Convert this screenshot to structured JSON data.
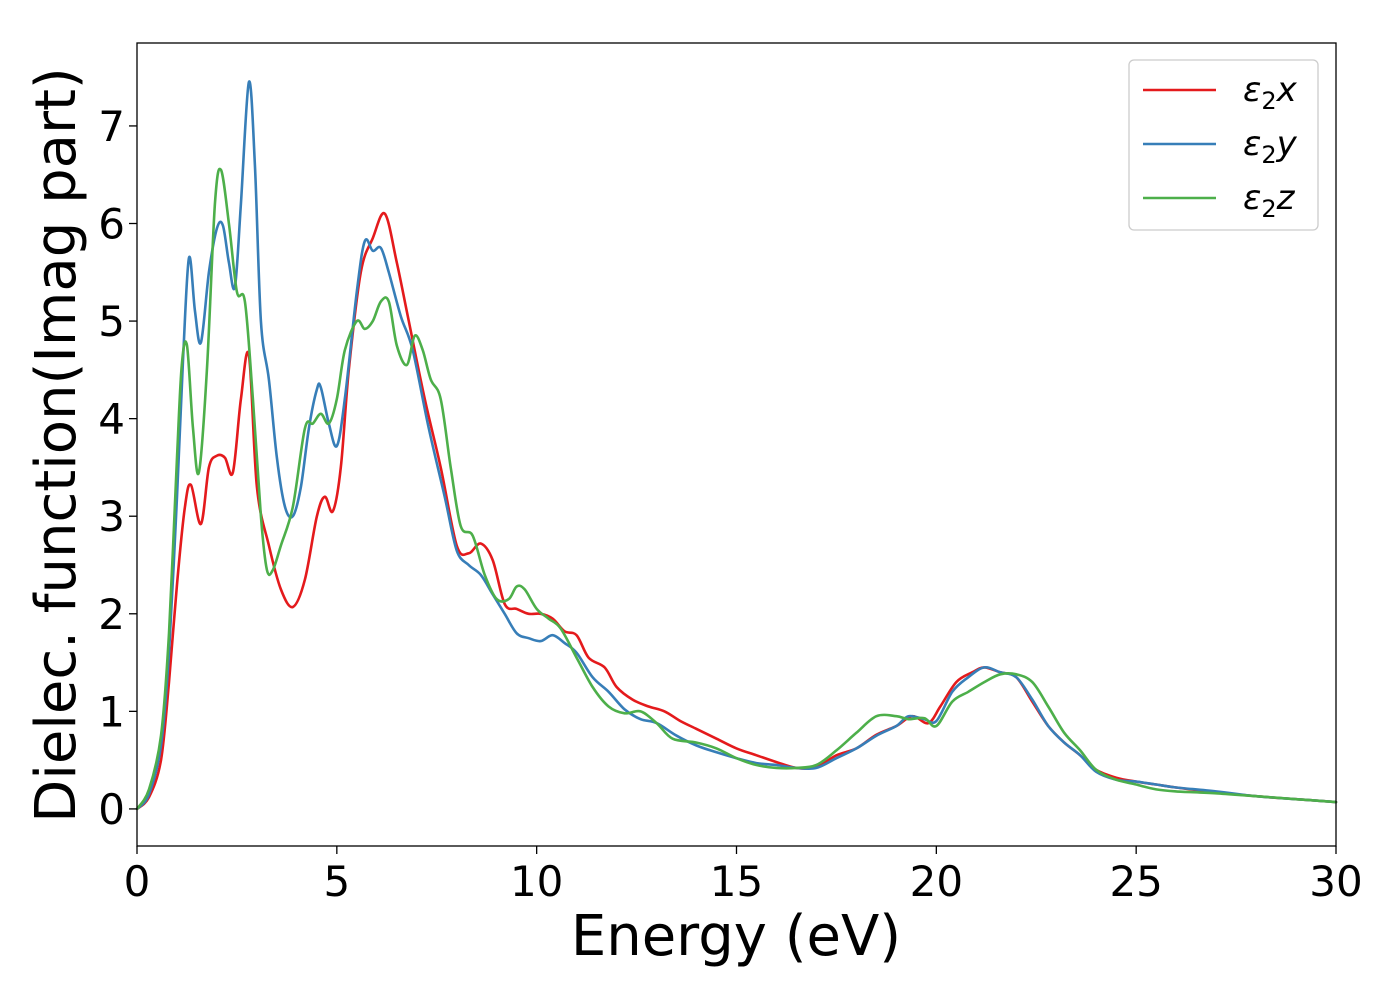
{
  "chart_data": {
    "type": "line",
    "xlabel": "Energy (eV)",
    "ylabel": "Dielec. function(Imag part)",
    "xlim": [
      0,
      30
    ],
    "ylim": [
      -0.38,
      7.85
    ],
    "xticks": [
      0,
      5,
      10,
      15,
      20,
      25,
      30
    ],
    "yticks": [
      0,
      1,
      2,
      3,
      4,
      5,
      6,
      7
    ],
    "grid": false,
    "legend_position": "top-right",
    "series": [
      {
        "name": "ε2x",
        "legend_main": "ε",
        "legend_sub": "2",
        "legend_var": "x",
        "color": "#e41a1c",
        "x": [
          0,
          0.3,
          0.6,
          0.8,
          1.0,
          1.2,
          1.35,
          1.6,
          1.8,
          2.0,
          2.2,
          2.4,
          2.6,
          2.8,
          3.0,
          3.3,
          3.6,
          3.9,
          4.2,
          4.5,
          4.7,
          4.9,
          5.1,
          5.3,
          5.6,
          5.9,
          6.2,
          6.5,
          6.8,
          7.2,
          7.6,
          8.0,
          8.3,
          8.6,
          8.9,
          9.2,
          9.5,
          9.8,
          10.1,
          10.4,
          10.7,
          11.0,
          11.3,
          11.7,
          12.0,
          12.4,
          12.8,
          13.2,
          13.6,
          14.0,
          14.5,
          15.0,
          15.5,
          16.0,
          16.5,
          17.0,
          17.5,
          18.0,
          18.5,
          19.0,
          19.4,
          19.8,
          20.1,
          20.5,
          20.9,
          21.2,
          21.6,
          22.0,
          22.4,
          22.8,
          23.2,
          23.6,
          24.0,
          24.5,
          25.0,
          25.5,
          26.0,
          27.0,
          28.0,
          29.0,
          30.0
        ],
        "y": [
          0.0,
          0.12,
          0.5,
          1.3,
          2.3,
          3.1,
          3.32,
          2.92,
          3.5,
          3.62,
          3.6,
          3.45,
          4.2,
          4.65,
          3.3,
          2.7,
          2.25,
          2.07,
          2.35,
          3.0,
          3.2,
          3.05,
          3.5,
          4.5,
          5.5,
          5.85,
          6.1,
          5.6,
          5.0,
          4.2,
          3.5,
          2.7,
          2.62,
          2.72,
          2.55,
          2.1,
          2.05,
          2.0,
          2.0,
          1.95,
          1.82,
          1.78,
          1.55,
          1.45,
          1.25,
          1.12,
          1.05,
          1.0,
          0.9,
          0.82,
          0.72,
          0.62,
          0.55,
          0.48,
          0.42,
          0.43,
          0.55,
          0.62,
          0.76,
          0.85,
          0.95,
          0.88,
          1.05,
          1.3,
          1.4,
          1.45,
          1.4,
          1.35,
          1.1,
          0.85,
          0.68,
          0.55,
          0.4,
          0.32,
          0.28,
          0.25,
          0.22,
          0.17,
          0.13,
          0.1,
          0.07
        ]
      },
      {
        "name": "ε2y",
        "legend_main": "ε",
        "legend_sub": "2",
        "legend_var": "y",
        "color": "#377eb8",
        "x": [
          0,
          0.3,
          0.6,
          0.8,
          1.0,
          1.15,
          1.3,
          1.45,
          1.6,
          1.8,
          2.0,
          2.15,
          2.3,
          2.45,
          2.6,
          2.8,
          2.95,
          3.1,
          3.3,
          3.5,
          3.7,
          3.9,
          4.1,
          4.3,
          4.5,
          4.6,
          4.8,
          5.0,
          5.2,
          5.5,
          5.7,
          5.9,
          6.1,
          6.3,
          6.6,
          6.9,
          7.3,
          7.7,
          8.0,
          8.3,
          8.6,
          8.9,
          9.2,
          9.5,
          9.8,
          10.1,
          10.4,
          10.7,
          11.0,
          11.4,
          11.8,
          12.2,
          12.6,
          13.0,
          13.5,
          14.0,
          14.5,
          15.0,
          15.5,
          16.0,
          16.5,
          17.0,
          17.5,
          18.0,
          18.5,
          19.0,
          19.3,
          19.7,
          20.0,
          20.4,
          20.8,
          21.2,
          21.6,
          22.0,
          22.4,
          22.8,
          23.2,
          23.6,
          24.0,
          24.5,
          25.0,
          25.5,
          26.0,
          27.0,
          28.0,
          29.0,
          30.0
        ],
        "y": [
          0.0,
          0.15,
          0.65,
          1.6,
          3.2,
          4.6,
          5.65,
          5.1,
          4.78,
          5.5,
          5.95,
          5.98,
          5.6,
          5.35,
          6.2,
          7.45,
          6.6,
          5.0,
          4.4,
          3.6,
          3.1,
          3.0,
          3.3,
          3.9,
          4.3,
          4.32,
          3.95,
          3.72,
          4.2,
          5.3,
          5.82,
          5.72,
          5.75,
          5.5,
          5.05,
          4.7,
          3.9,
          3.2,
          2.65,
          2.5,
          2.4,
          2.2,
          2.0,
          1.8,
          1.75,
          1.72,
          1.78,
          1.7,
          1.6,
          1.35,
          1.2,
          1.02,
          0.92,
          0.88,
          0.75,
          0.65,
          0.58,
          0.52,
          0.47,
          0.45,
          0.42,
          0.42,
          0.52,
          0.62,
          0.75,
          0.85,
          0.95,
          0.92,
          0.9,
          1.2,
          1.35,
          1.45,
          1.4,
          1.35,
          1.12,
          0.85,
          0.68,
          0.55,
          0.38,
          0.3,
          0.28,
          0.25,
          0.22,
          0.18,
          0.13,
          0.1,
          0.07
        ]
      },
      {
        "name": "ε2z",
        "legend_main": "ε",
        "legend_sub": "2",
        "legend_var": "z",
        "color": "#4daf4a",
        "x": [
          0,
          0.3,
          0.6,
          0.8,
          1.0,
          1.12,
          1.25,
          1.4,
          1.55,
          1.75,
          1.95,
          2.1,
          2.3,
          2.5,
          2.7,
          2.9,
          3.1,
          3.25,
          3.4,
          3.6,
          3.9,
          4.2,
          4.4,
          4.6,
          4.8,
          5.0,
          5.2,
          5.5,
          5.7,
          5.9,
          6.1,
          6.3,
          6.5,
          6.75,
          6.95,
          7.15,
          7.35,
          7.6,
          7.85,
          8.1,
          8.4,
          8.7,
          9.0,
          9.3,
          9.5,
          9.7,
          10.0,
          10.3,
          10.6,
          11.0,
          11.4,
          11.8,
          12.2,
          12.6,
          13.0,
          13.4,
          14.0,
          14.5,
          15.0,
          15.5,
          16.0,
          16.5,
          17.0,
          17.5,
          18.0,
          18.5,
          19.0,
          19.3,
          19.7,
          20.0,
          20.4,
          20.8,
          21.2,
          21.6,
          22.0,
          22.4,
          22.8,
          23.2,
          23.6,
          24.0,
          24.5,
          25.0,
          25.5,
          26.0,
          27.0,
          28.0,
          29.0,
          30.0
        ],
        "y": [
          0.0,
          0.2,
          0.75,
          1.8,
          3.6,
          4.55,
          4.75,
          3.9,
          3.45,
          4.5,
          6.2,
          6.55,
          6.0,
          5.3,
          5.2,
          4.2,
          3.0,
          2.45,
          2.45,
          2.7,
          3.1,
          3.9,
          3.95,
          4.05,
          3.95,
          4.2,
          4.7,
          5.0,
          4.92,
          5.0,
          5.2,
          5.2,
          4.75,
          4.55,
          4.85,
          4.7,
          4.4,
          4.2,
          3.5,
          2.9,
          2.8,
          2.4,
          2.15,
          2.15,
          2.28,
          2.25,
          2.05,
          1.95,
          1.85,
          1.55,
          1.25,
          1.05,
          0.98,
          1.0,
          0.88,
          0.72,
          0.68,
          0.62,
          0.52,
          0.45,
          0.42,
          0.42,
          0.45,
          0.6,
          0.78,
          0.95,
          0.95,
          0.92,
          0.93,
          0.85,
          1.1,
          1.2,
          1.3,
          1.38,
          1.38,
          1.3,
          1.05,
          0.78,
          0.6,
          0.4,
          0.3,
          0.25,
          0.2,
          0.18,
          0.16,
          0.13,
          0.1,
          0.07
        ]
      }
    ]
  }
}
